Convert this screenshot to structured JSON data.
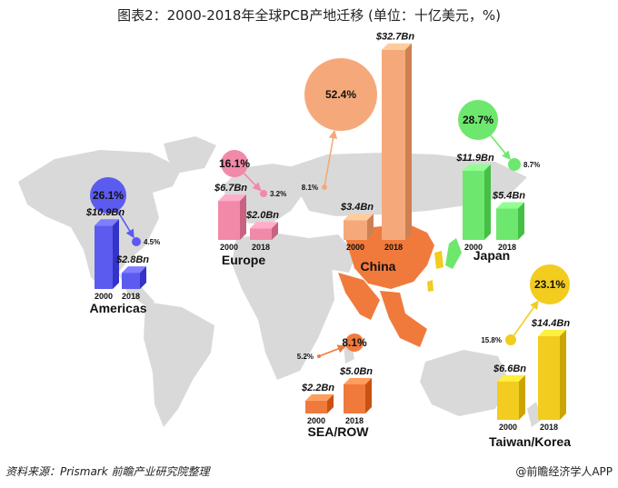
{
  "title": "图表2：2000-2018年全球PCB产地迁移 (单位：十亿美元，%)",
  "footer": {
    "source": "资料来源：Prismark 前瞻产业研究院整理",
    "brand": "@前瞻经济学人APP"
  },
  "colors": {
    "americas": "#5b5bf0",
    "europe": "#f08aa8",
    "china": "#f5a97a",
    "japan": "#6ee76e",
    "sea_row": "#f07a3c",
    "taiwan_korea": "#f2cc1e",
    "map_land": "#d9d9d9",
    "china_map": "#f07a3c",
    "sea_map": "#f07a3c",
    "taiwan_map": "#f2cc1e"
  },
  "chart_data": {
    "type": "bar",
    "title": "2000-2018年全球PCB产地迁移",
    "unit": "十亿美元",
    "categories": [
      "2000",
      "2018"
    ],
    "regions": [
      {
        "key": "americas",
        "name": "Americas",
        "values": [
          10.9,
          2.8
        ],
        "labels": [
          "$10.9Bn",
          "$2.8Bn"
        ],
        "share_2000": "26.1%",
        "share_2018": "4.5%"
      },
      {
        "key": "europe",
        "name": "Europe",
        "values": [
          6.7,
          2.0
        ],
        "labels": [
          "$6.7Bn",
          "$2.0Bn"
        ],
        "share_2000": "16.1%",
        "share_2018": "3.2%"
      },
      {
        "key": "china",
        "name": "China",
        "values": [
          3.4,
          32.7
        ],
        "labels": [
          "$3.4Bn",
          "$32.7Bn"
        ],
        "share_2000": "8.1%",
        "share_2018": "52.4%"
      },
      {
        "key": "japan",
        "name": "Japan",
        "values": [
          11.9,
          5.4
        ],
        "labels": [
          "$11.9Bn",
          "$5.4Bn"
        ],
        "share_2000": "28.7%",
        "share_2018": "8.7%"
      },
      {
        "key": "sea_row",
        "name": "SEA/ROW",
        "values": [
          2.2,
          5.0
        ],
        "labels": [
          "$2.2Bn",
          "$5.0Bn"
        ],
        "share_2000": "5.2%",
        "share_2018": "8.1%"
      },
      {
        "key": "taiwan_korea",
        "name": "Taiwan/Korea",
        "values": [
          6.6,
          14.4
        ],
        "labels": [
          "$6.6Bn",
          "$14.4Bn"
        ],
        "share_2000": "15.8%",
        "share_2018": "23.1%"
      }
    ]
  }
}
